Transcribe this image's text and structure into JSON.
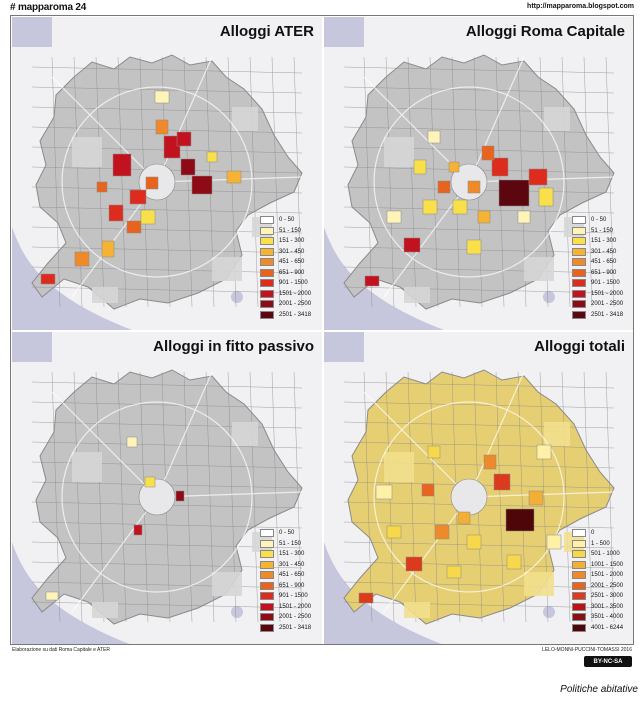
{
  "header": {
    "brand": "# mapparoma 24",
    "url": "http://mapparoma.blogspot.com"
  },
  "panels": [
    {
      "title": "Alloggi ATER",
      "legend": [
        "0 - 50",
        "51 - 150",
        "151 - 300",
        "301 - 450",
        "451 - 650",
        "651 - 900",
        "901 - 1500",
        "1501 - 2000",
        "2001 - 2500",
        "2501 - 3418"
      ],
      "colors": [
        "#ffffff",
        "#fff4b8",
        "#f9df4a",
        "#f5b233",
        "#ef8a2a",
        "#e8641e",
        "#dd2c1e",
        "#c21220",
        "#8e0a16",
        "#5c0710"
      ]
    },
    {
      "title": "Alloggi Roma Capitale",
      "legend": [
        "0 - 50",
        "51 - 150",
        "151 - 300",
        "301 - 450",
        "451 - 650",
        "651 - 900",
        "901 - 1500",
        "1501 - 2000",
        "2001 - 2500",
        "2501 - 3418"
      ],
      "colors": [
        "#ffffff",
        "#fff4b8",
        "#f9df4a",
        "#f5b233",
        "#ef8a2a",
        "#e8641e",
        "#dd2c1e",
        "#c21220",
        "#8e0a16",
        "#5c0710"
      ]
    },
    {
      "title": "Alloggi in fitto passivo",
      "legend": [
        "0 - 50",
        "51 - 150",
        "151 - 300",
        "301 - 450",
        "451 - 650",
        "651 - 900",
        "901 - 1500",
        "1501 - 2000",
        "2001 - 2500",
        "2501 - 3418"
      ],
      "colors": [
        "#ffffff",
        "#fff4b8",
        "#f9df4a",
        "#f5b233",
        "#ef8a2a",
        "#e8641e",
        "#dd2c1e",
        "#c21220",
        "#8e0a16",
        "#5c0710"
      ]
    },
    {
      "title": "Alloggi totali",
      "legend": [
        "0",
        "1 - 500",
        "501 - 1000",
        "1001 - 1500",
        "1501 - 2000",
        "2001 - 2500",
        "2501 - 3000",
        "3001 - 3500",
        "3501 - 4000",
        "4001 - 6244"
      ],
      "colors": [
        "#ffffff",
        "#fff0a8",
        "#f7d84a",
        "#f3ae35",
        "#ee8a2b",
        "#e86420",
        "#dc3a1c",
        "#b9141a",
        "#871014",
        "#4e0608"
      ]
    }
  ],
  "footer": {
    "source": "Elaborazione su dati Roma Capitale e ATER",
    "authors": "LELO-MONNI-PUCCINI-TOMASSI 2016",
    "license": "BY-NC-SA"
  },
  "caption": "Politiche abitative",
  "map_colors": {
    "sea": "#c6c6dc",
    "outside": "#f1f1f4",
    "zone_gray": "#c3c3c3",
    "zone_light": "#d6d6d6",
    "borders": "#8a8a8a",
    "roads": "#ffffff"
  }
}
